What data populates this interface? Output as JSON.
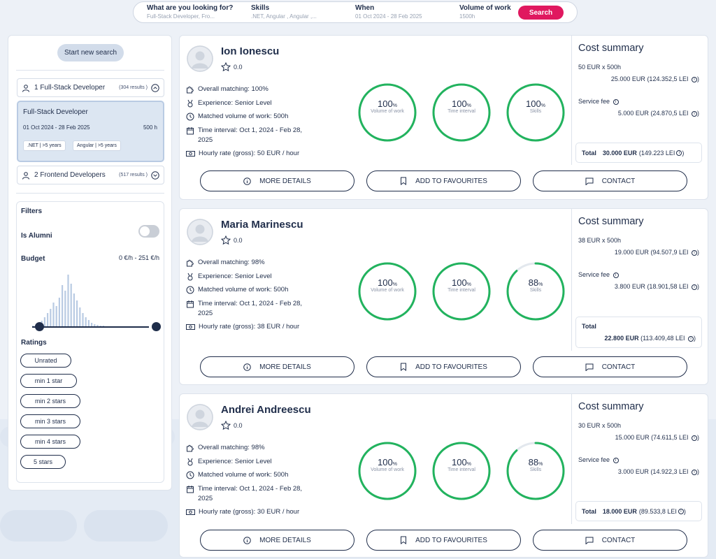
{
  "search": {
    "looking_label": "What are you looking for?",
    "looking_value": "Full-Stack Developer, Fro...",
    "skills_label": "Skills",
    "skills_value": ".NET, Angular , Angular ,...",
    "when_label": "When",
    "when_value": "01 Oct 2024 - 28 Feb 2025",
    "volume_label": "Volume of work",
    "volume_value": "1500h",
    "button_label": "Search",
    "button_color": "#e0185f"
  },
  "sidebar": {
    "new_search_label": "Start new search",
    "groups": [
      {
        "label": "1 Full-Stack Developer",
        "count": "(304 results )"
      },
      {
        "label": "2 Frontend Developers",
        "count": "(517 results )"
      }
    ],
    "selected": {
      "title": "Full-Stack Developer",
      "date": "01 Oct 2024 - 28 Feb 2025",
      "hours": "500 h",
      "chips": [
        ".NET | >5 years",
        "Angular | >5 years"
      ]
    },
    "filters": {
      "title": "Filters",
      "alumni_label": "Is Alumni",
      "alumni_on": false,
      "budget_label": "Budget",
      "budget_range": "0 €/h - 251 €/h",
      "ratings_label": "Ratings",
      "ratings": [
        "Unrated",
        "min 1 star",
        "min 2 stars",
        "min 3 stars",
        "min 4 stars",
        "5 stars"
      ]
    }
  },
  "labels": {
    "rings": [
      "Volume of work",
      "Time interval",
      "Skills"
    ],
    "cost_title": "Cost summary",
    "service_fee": "Service fee",
    "total": "Total",
    "more_details": "MORE DETAILS",
    "add_favourites": "ADD TO FAVOURITES",
    "contact": "CONTACT",
    "percent_sign": "%"
  },
  "candidates": [
    {
      "name": "Ion Ionescu",
      "rating": "0.0",
      "overall": "Overall matching: 100%",
      "experience": "Experience: Senior Level",
      "volume": "Matched volume of work: 500h",
      "interval": "Time interval: Oct 1, 2024 - Feb 28, 2025",
      "rate": "Hourly rate (gross): 50 EUR / hour",
      "scores": [
        100,
        100,
        100
      ],
      "cost_rate": "50 EUR x 500h",
      "cost_amount": "25.000 EUR",
      "cost_lei": "(124.352,5 LEI",
      "fee_amount": "5.000 EUR",
      "fee_lei": "(24.870,5 LEI",
      "total_amount": "30.000 EUR",
      "total_lei": "(149.223 LEI"
    },
    {
      "name": "Maria Marinescu",
      "rating": "0.0",
      "overall": "Overall matching: 98%",
      "experience": "Experience: Senior Level",
      "volume": "Matched volume of work: 500h",
      "interval": "Time interval: Oct 1, 2024 - Feb 28, 2025",
      "rate": "Hourly rate (gross): 38 EUR / hour",
      "scores": [
        100,
        100,
        88
      ],
      "cost_rate": "38 EUR x 500h",
      "cost_amount": "19.000 EUR",
      "cost_lei": "(94.507,9 LEI",
      "fee_amount": "3.800 EUR",
      "fee_lei": "(18.901,58 LEI",
      "total_amount": "22.800 EUR",
      "total_lei": "(113.409,48 LEI"
    },
    {
      "name": "Andrei Andreescu",
      "rating": "0.0",
      "overall": "Overall matching: 98%",
      "experience": "Experience: Senior Level",
      "volume": "Matched volume of work: 500h",
      "interval": "Time interval: Oct 1, 2024 - Feb 28, 2025",
      "rate": "Hourly rate (gross): 30 EUR / hour",
      "scores": [
        100,
        100,
        88
      ],
      "cost_rate": "30 EUR x 500h",
      "cost_amount": "15.000 EUR",
      "cost_lei": "(74.611,5 LEI",
      "fee_amount": "3.000 EUR",
      "fee_lei": "(14.922,3 LEI",
      "total_amount": "18.000 EUR",
      "total_lei": "(89.533,8 LEI"
    }
  ],
  "colors": {
    "ring_green": "#22b35e",
    "ring_track": "#e3e8ee",
    "navy": "#1f2d4a"
  }
}
